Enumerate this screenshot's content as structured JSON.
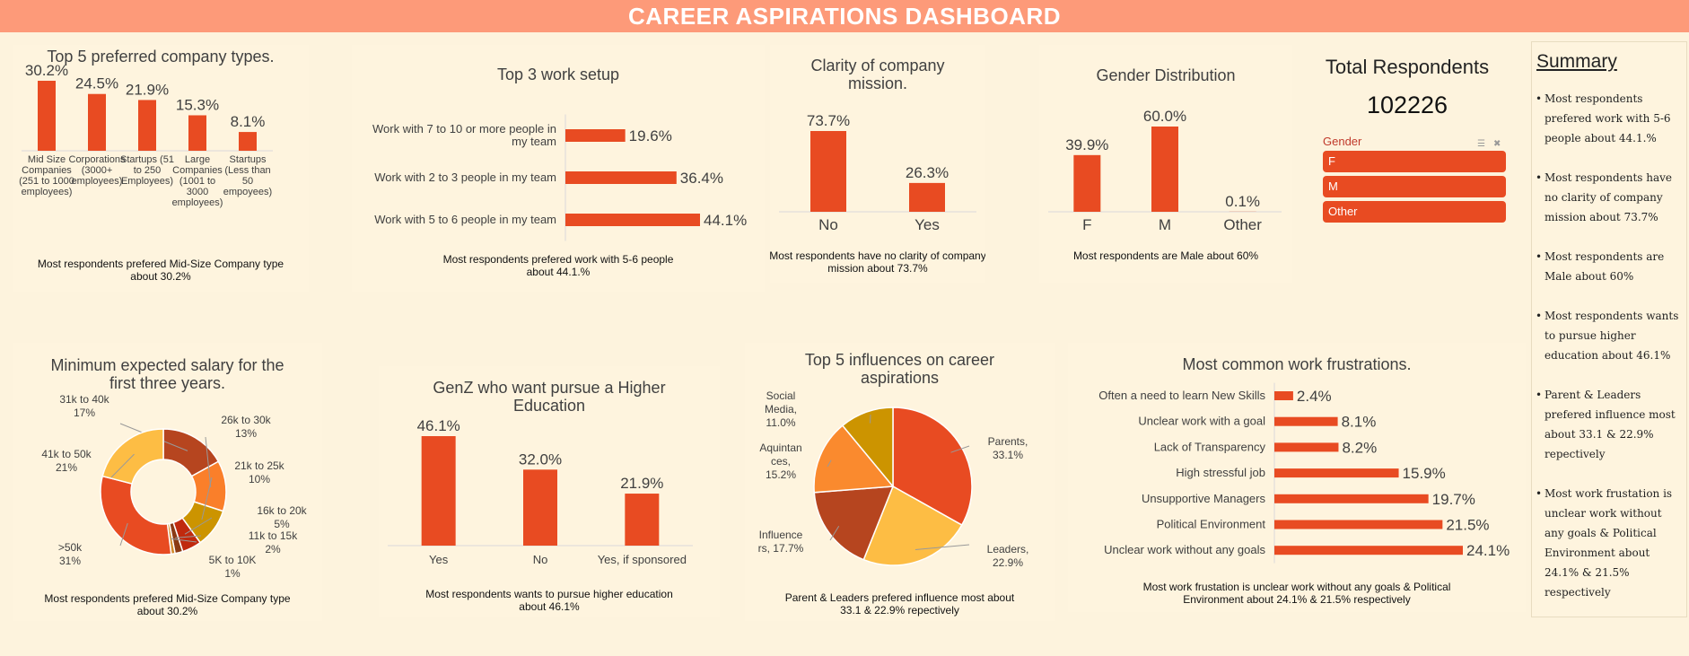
{
  "header": {
    "title": "CAREER ASPIRATIONS DASHBOARD"
  },
  "colors": {
    "accent": "#e84b22",
    "header": "#fd9a79",
    "background": "#fdf3dd"
  },
  "total": {
    "title": "Total  Respondents",
    "value": "102226"
  },
  "slicer": {
    "title": "Gender",
    "items": [
      "F",
      "M",
      "Other"
    ]
  },
  "summary": {
    "title": "Summary",
    "items": [
      "Most respondents prefered work with 5-6 people about 44.1.%",
      "Most respondents have no clarity of company mission about 73.7%",
      "Most respondents are Male about 60%",
      "Most respondents wants to pursue higher education about 46.1%",
      "Parent & Leaders prefered influence most about 33.1 & 22.9% repectively",
      "Most work frustation is unclear work without any goals & Political Environment about 24.1% & 21.5% respectively"
    ]
  },
  "chart_data": [
    {
      "type": "bar",
      "title": "Top 5 preferred company types.",
      "categories": [
        [
          "Mid Size",
          "Companies",
          "(251 to 1000",
          "employees)"
        ],
        [
          "Corporations",
          "(3000+",
          "employees)"
        ],
        [
          "Startups (51",
          "to 250",
          "Employees)"
        ],
        [
          "Large",
          "Companies",
          "(1001 to",
          "3000",
          "employees)"
        ],
        [
          "Startups",
          "(Less than",
          "50",
          "empoyees)"
        ]
      ],
      "values": [
        30.2,
        24.5,
        21.9,
        15.3,
        8.1
      ],
      "value_labels": [
        "30.2%",
        "24.5%",
        "21.9%",
        "15.3%",
        "8.1%"
      ],
      "caption": [
        "Most respondents prefered Mid-Size Company type",
        "about 30.2%"
      ]
    },
    {
      "type": "bar",
      "orientation": "horizontal",
      "title": "Top 3 work setup",
      "categories": [
        [
          "Work with 7 to 10 or more people in",
          "my team"
        ],
        [
          "Work with 2 to 3 people in my team"
        ],
        [
          "Work with 5 to 6 people in my team"
        ]
      ],
      "values": [
        19.6,
        36.4,
        44.1
      ],
      "value_labels": [
        "19.6%",
        "36.4%",
        "44.1%"
      ],
      "caption": [
        "Most respondents prefered work with 5-6 people",
        "about 44.1.%"
      ]
    },
    {
      "type": "bar",
      "title": [
        "Clarity of company",
        "mission."
      ],
      "categories": [
        "No",
        "Yes"
      ],
      "values": [
        73.7,
        26.3
      ],
      "value_labels": [
        "73.7%",
        "26.3%"
      ],
      "caption": [
        "Most respondents have no clarity of company",
        "mission about 73.7%"
      ]
    },
    {
      "type": "bar",
      "title": "Gender Distribution",
      "categories": [
        "F",
        "M",
        "Other"
      ],
      "values": [
        39.9,
        60.0,
        0.1
      ],
      "value_labels": [
        "39.9%",
        "60.0%",
        "0.1%"
      ],
      "caption": [
        "Most respondents are Male about 60%"
      ]
    },
    {
      "type": "pie",
      "donut": true,
      "title": [
        "Minimum expected salary for the",
        "first three years."
      ],
      "slices": [
        {
          "label": [
            "31k to 40k",
            "17%"
          ],
          "value": 17,
          "color": "#b6451f"
        },
        {
          "label": [
            "26k to 30k",
            "13%"
          ],
          "value": 13,
          "color": "#fa7f2a"
        },
        {
          "label": [
            "21k to 25k",
            "10%"
          ],
          "value": 10,
          "color": "#cc9400"
        },
        {
          "label": [
            "16k to 20k",
            "5%"
          ],
          "value": 5,
          "color": "#c0290e"
        },
        {
          "label": [
            "11k to 15k",
            "2%"
          ],
          "value": 2,
          "color": "#8b3a14"
        },
        {
          "label": [
            "5K to 10K",
            "1%"
          ],
          "value": 1,
          "color": "#d28a2b"
        },
        {
          "label": [
            ">50k",
            "31%"
          ],
          "value": 31,
          "color": "#e84b22"
        },
        {
          "label": [
            "41k to 50k",
            "21%"
          ],
          "value": 21,
          "color": "#fdbd44"
        }
      ],
      "caption": [
        "Most respondents prefered Mid-Size Company type",
        "about 30.2%"
      ]
    },
    {
      "type": "bar",
      "title": [
        "GenZ who want pursue a Higher",
        "Education"
      ],
      "categories": [
        "Yes",
        "No",
        "Yes, if sponsored"
      ],
      "values": [
        46.1,
        32.0,
        21.9
      ],
      "value_labels": [
        "46.1%",
        "32.0%",
        "21.9%"
      ],
      "caption": [
        "Most respondents wants to pursue higher education",
        "about 46.1%"
      ]
    },
    {
      "type": "pie",
      "title": [
        "Top 5 influences on career",
        "aspirations"
      ],
      "slices": [
        {
          "label": [
            "Parents,",
            "33.1%"
          ],
          "value": 33.1,
          "color": "#e84b22"
        },
        {
          "label": [
            "Leaders,",
            "22.9%"
          ],
          "value": 22.9,
          "color": "#fdbd44"
        },
        {
          "label": [
            "Influence",
            "rs, 17.7%"
          ],
          "value": 17.7,
          "color": "#b6451f"
        },
        {
          "label": [
            "Aquintan",
            "ces,",
            "15.2%"
          ],
          "value": 15.2,
          "color": "#fa8a2e"
        },
        {
          "label": [
            "Social",
            "Media,",
            "11.0%"
          ],
          "value": 11.0,
          "color": "#cc9400"
        }
      ],
      "caption": [
        "Parent & Leaders prefered influence most about",
        "33.1 & 22.9% repectively"
      ]
    },
    {
      "type": "bar",
      "orientation": "horizontal",
      "title": "Most common work frustrations.",
      "categories": [
        "Often a need to learn New Skills",
        "Unclear work with a goal",
        "Lack of Transparency",
        "High stressful job",
        "Unsupportive Managers",
        "Political Environment",
        "Unclear work without any goals"
      ],
      "values": [
        2.4,
        8.1,
        8.2,
        15.9,
        19.7,
        21.5,
        24.1
      ],
      "value_labels": [
        "2.4%",
        "8.1%",
        "8.2%",
        "15.9%",
        "19.7%",
        "21.5%",
        "24.1%"
      ],
      "caption": [
        "Most work frustation is unclear work without any goals & Political",
        "Environment about 24.1% & 21.5% respectively"
      ]
    }
  ]
}
